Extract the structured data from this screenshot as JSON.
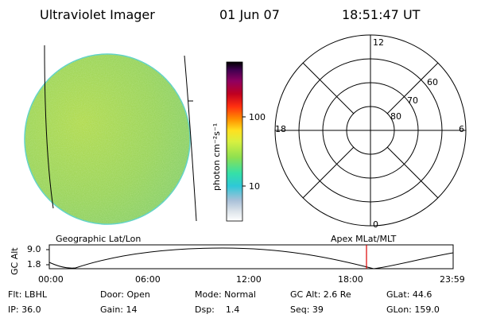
{
  "header": {
    "title": "Ultraviolet Imager",
    "date": "01 Jun 07",
    "time": "18:51:47 UT"
  },
  "colorbar": {
    "unit_label": "photon cm⁻²s⁻¹",
    "ticks": [
      "100",
      "10"
    ]
  },
  "polar_plot": {
    "mlt_labels": [
      "12",
      "18",
      "6",
      "0"
    ],
    "lat_labels": [
      "60",
      "70",
      "80"
    ]
  },
  "strip_plot": {
    "left_title": "Geographic Lat/Lon",
    "right_title": "Apex MLat/MLT",
    "y_axis_label": "GC Alt",
    "y_ticks": [
      "9.0",
      "1.8"
    ],
    "x_ticks": [
      "00:00",
      "06:00",
      "12:00",
      "18:00",
      "23:59"
    ]
  },
  "info_row1": {
    "filter": "Flt: LBHL",
    "door": "Door: Open",
    "mode": "Mode: Normal",
    "gc_alt": "GC Alt: 2.6 Re",
    "glat": "GLat:  44.6"
  },
  "info_row2": {
    "ip": "IP: 36.0",
    "gain": "Gain: 14",
    "dsp": "Dsp:    1.4",
    "seq": "Seq: 39",
    "glon": "GLon: 159.0"
  },
  "colors": {
    "disk_fill": "#a6d85a",
    "disk_edge": "#5cd2c8",
    "marker": "#dd0000",
    "colorbar_stops": [
      "#ffffff",
      "#dde4ea",
      "#a8c0d8",
      "#2ec8d8",
      "#35e0a8",
      "#8ee050",
      "#d8f040",
      "#ffe020",
      "#ff9000",
      "#ff3010",
      "#c00020",
      "#900060",
      "#400050",
      "#000000"
    ]
  }
}
